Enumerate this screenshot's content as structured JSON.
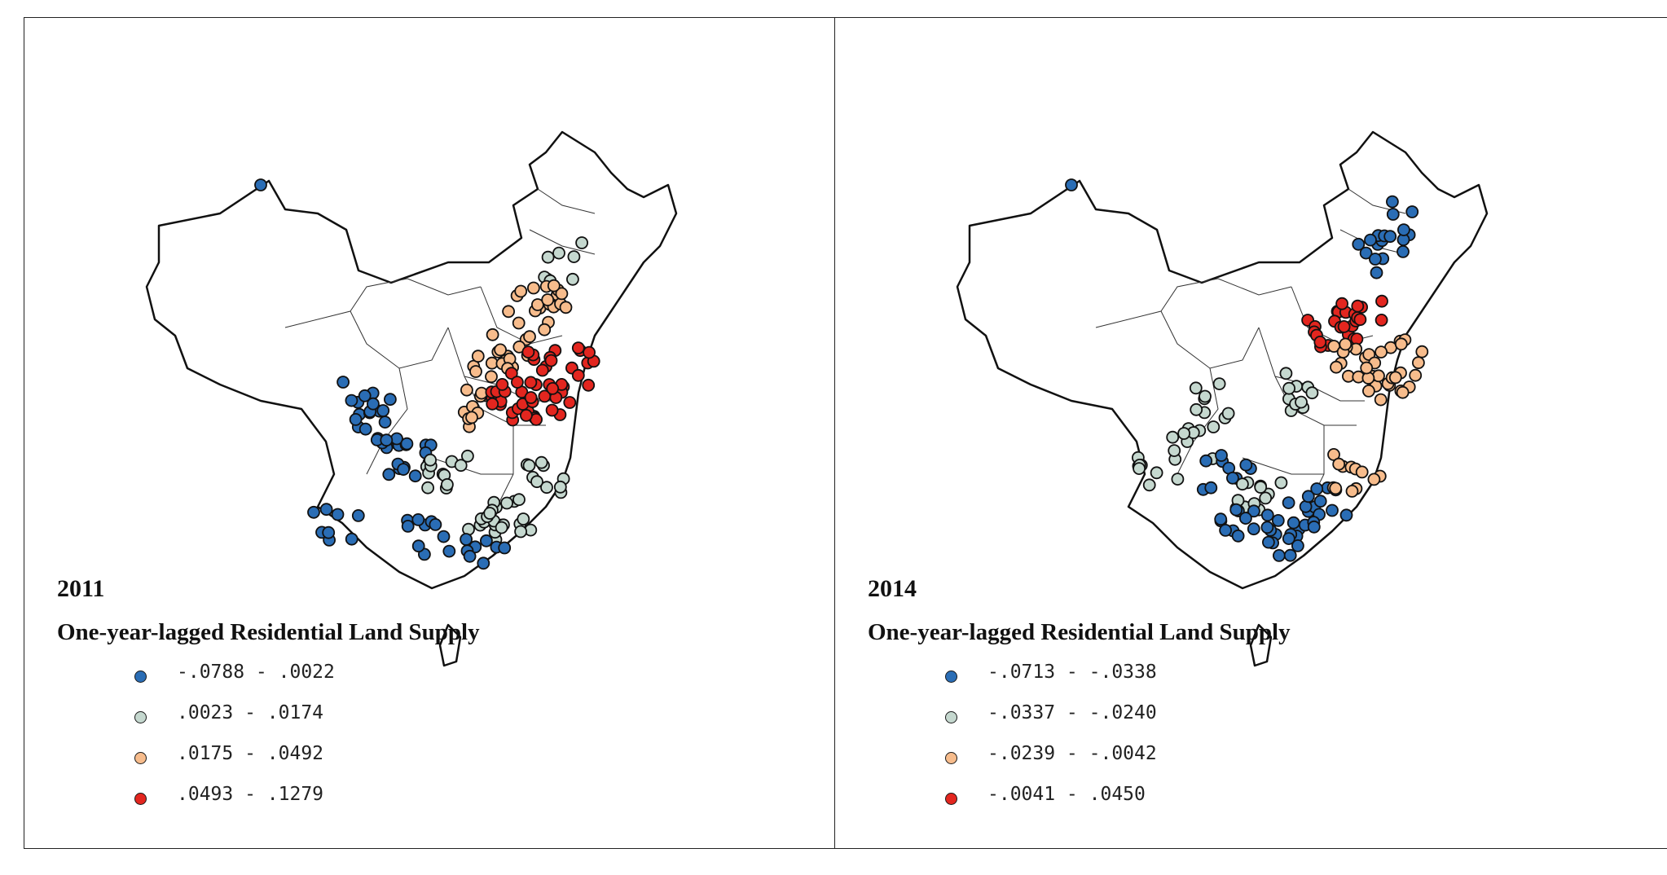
{
  "colors": {
    "class1": "#2a6db5",
    "class2": "#c5d8cf",
    "class3": "#f7bc8c",
    "class4": "#e3261f",
    "outline": "#111111"
  },
  "panels": [
    {
      "year": "2011",
      "title": "One-year-lagged Residential Land Supply",
      "legend": [
        {
          "label": "-.0788 - .0022",
          "color": "#2a6db5"
        },
        {
          "label": ".0023 - .0174",
          "color": "#c5d8cf"
        },
        {
          "label": ".0175 - .0492",
          "color": "#f7bc8c"
        },
        {
          "label": ".0493 - .1279",
          "color": "#e3261f"
        }
      ]
    },
    {
      "year": "2014",
      "title": "One-year-lagged Residential Land Supply",
      "legend": [
        {
          "label": "-.0713 - -.0338",
          "color": "#2a6db5"
        },
        {
          "label": "-.0337 - -.0240",
          "color": "#c5d8cf"
        },
        {
          "label": "-.0239 - -.0042",
          "color": "#f7bc8c"
        },
        {
          "label": "-.0041 - .0450",
          "color": "#e3261f"
        }
      ]
    }
  ]
}
